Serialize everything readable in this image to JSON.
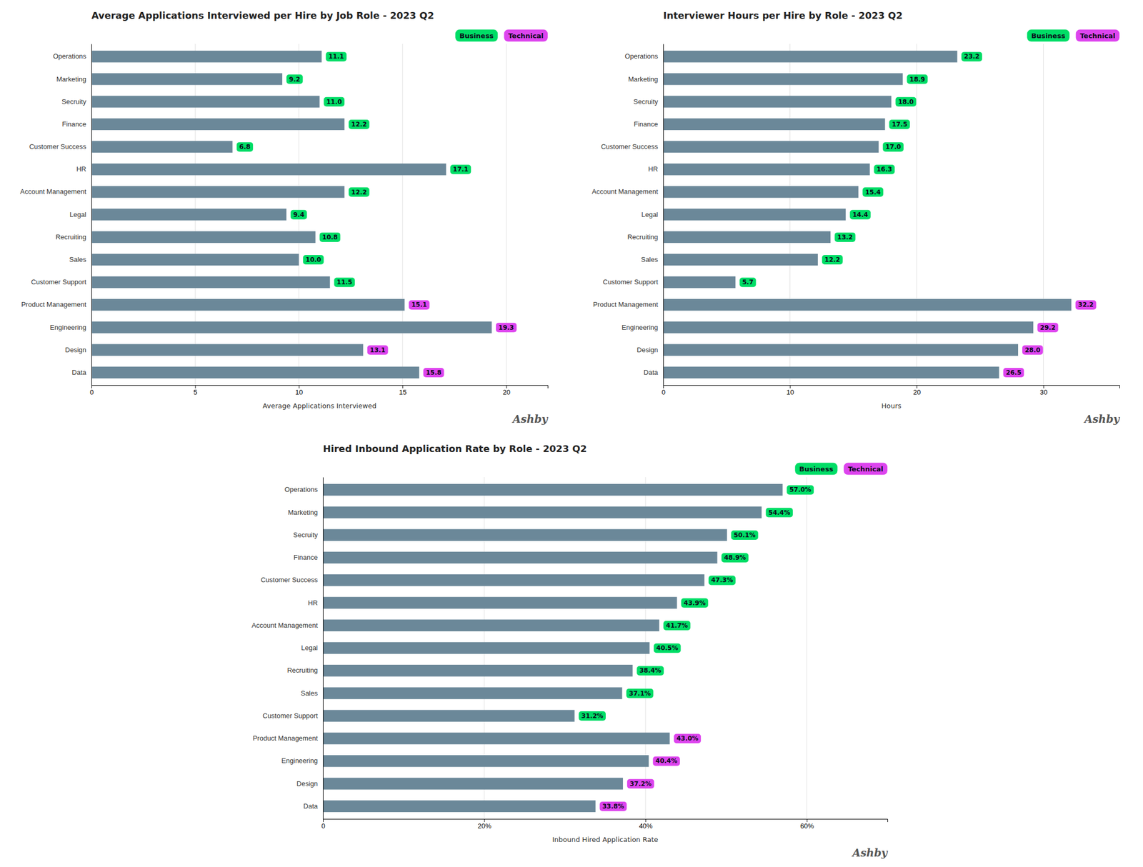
{
  "chart_data": [
    {
      "type": "bar",
      "orientation": "horizontal",
      "stacked": true,
      "data_labels": true,
      "grid": true,
      "legend": "upper right",
      "title": "Average Applications Interviewed per Hire by Job Role - 2023 Q2",
      "xlabel": "Average Applications Interviewed",
      "annotations": [
        "Ashby"
      ],
      "color": "#6b8899",
      "categories": [
        "Operations",
        "Marketing",
        "Secruity",
        "Finance",
        "Customer Success",
        "HR",
        "Account Management",
        "Legal",
        "Recruiting",
        "Sales",
        "Customer Support",
        "Product Management",
        "Engineering",
        "Design",
        "Data"
      ],
      "series": [
        {
          "name": "Business",
          "color": "#00dd66",
          "values": [
            11.1,
            9.2,
            11.0,
            12.2,
            6.8,
            17.1,
            12.2,
            9.4,
            10.8,
            10.0,
            11.5,
            null,
            null,
            null,
            null
          ],
          "value_labels": [
            "11.1",
            "9.2",
            "11.0",
            "12.2",
            "6.8",
            "17.1",
            "12.2",
            "9.4",
            "10.8",
            "10.0",
            "11.5",
            null,
            null,
            null,
            null
          ]
        },
        {
          "name": "Technical",
          "color": "#dd44ee",
          "values": [
            null,
            null,
            null,
            null,
            null,
            null,
            null,
            null,
            null,
            null,
            null,
            15.1,
            19.3,
            13.1,
            15.8
          ],
          "value_labels": [
            null,
            null,
            null,
            null,
            null,
            null,
            null,
            null,
            null,
            null,
            null,
            "15.1",
            "19.3",
            "13.1",
            "15.8"
          ]
        }
      ],
      "xlim": [
        0,
        22
      ],
      "xticks": [
        0,
        5,
        10,
        15,
        20
      ]
    },
    {
      "type": "bar",
      "orientation": "horizontal",
      "stacked": true,
      "data_labels": true,
      "grid": true,
      "legend": "upper right",
      "title": "Interviewer Hours per Hire by Role - 2023 Q2",
      "xlabel": "Hours",
      "annotations": [
        "Ashby"
      ],
      "color": "#6b8899",
      "categories": [
        "Operations",
        "Marketing",
        "Secruity",
        "Finance",
        "Customer Success",
        "HR",
        "Account Management",
        "Legal",
        "Recruiting",
        "Sales",
        "Customer Support",
        "Product Management",
        "Engineering",
        "Design",
        "Data"
      ],
      "series": [
        {
          "name": "Business",
          "color": "#00dd66",
          "values": [
            23.2,
            18.9,
            18.0,
            17.5,
            17.0,
            16.3,
            15.4,
            14.4,
            13.2,
            12.2,
            5.7,
            null,
            null,
            null,
            null
          ],
          "value_labels": [
            "23.2",
            "18.9",
            "18.0",
            "17.5",
            "17.0",
            "16.3",
            "15.4",
            "14.4",
            "13.2",
            "12.2",
            "5.7",
            null,
            null,
            null,
            null
          ]
        },
        {
          "name": "Technical",
          "color": "#dd44ee",
          "values": [
            null,
            null,
            null,
            null,
            null,
            null,
            null,
            null,
            null,
            null,
            null,
            32.2,
            29.2,
            28.0,
            26.5
          ],
          "value_labels": [
            null,
            null,
            null,
            null,
            null,
            null,
            null,
            null,
            null,
            null,
            null,
            "32.2",
            "29.2",
            "28.0",
            "26.5"
          ]
        }
      ],
      "xlim": [
        0,
        36
      ],
      "xticks": [
        0,
        10,
        20,
        30
      ]
    },
    {
      "type": "bar",
      "orientation": "horizontal",
      "stacked": true,
      "data_labels": true,
      "grid": true,
      "legend": "upper right",
      "title": "Hired Inbound Application Rate by Role - 2023 Q2",
      "xlabel": "Inbound Hired Application Rate",
      "annotations": [
        "Ashby"
      ],
      "color": "#6b8899",
      "categories": [
        "Operations",
        "Marketing",
        "Secruity",
        "Finance",
        "Customer Success",
        "HR",
        "Account Management",
        "Legal",
        "Recruiting",
        "Sales",
        "Customer Support",
        "Product Management",
        "Engineering",
        "Design",
        "Data"
      ],
      "series": [
        {
          "name": "Business",
          "color": "#00dd66",
          "values": [
            57.0,
            54.4,
            50.1,
            48.9,
            47.3,
            43.9,
            41.7,
            40.5,
            38.4,
            37.1,
            31.2,
            null,
            null,
            null,
            null
          ],
          "value_labels": [
            "57.0%",
            "54.4%",
            "50.1%",
            "48.9%",
            "47.3%",
            "43.9%",
            "41.7%",
            "40.5%",
            "38.4%",
            "37.1%",
            "31.2%",
            null,
            null,
            null,
            null
          ]
        },
        {
          "name": "Technical",
          "color": "#dd44ee",
          "values": [
            null,
            null,
            null,
            null,
            null,
            null,
            null,
            null,
            null,
            null,
            null,
            43.0,
            40.4,
            37.2,
            33.8
          ],
          "value_labels": [
            null,
            null,
            null,
            null,
            null,
            null,
            null,
            null,
            null,
            null,
            null,
            "43.0%",
            "40.4%",
            "37.2%",
            "33.8%"
          ]
        }
      ],
      "xlim": [
        0,
        70
      ],
      "xticks": [
        0,
        {
          "value": 20,
          "label": "20%"
        },
        {
          "value": 40,
          "label": "40%"
        },
        {
          "value": 60,
          "label": "60%"
        }
      ]
    }
  ]
}
